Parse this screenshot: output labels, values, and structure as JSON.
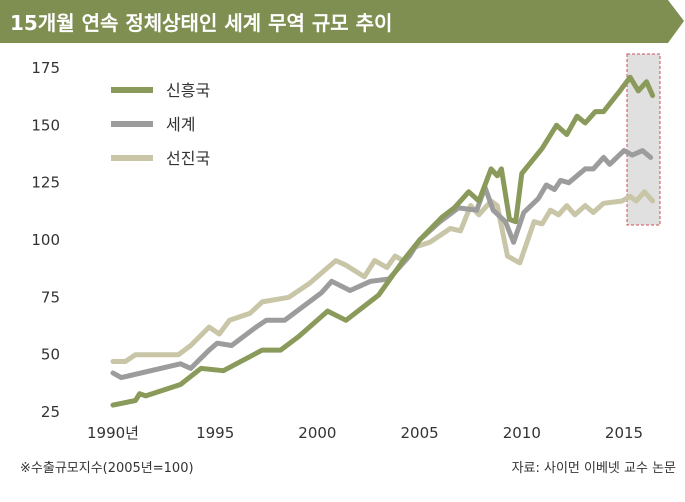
{
  "title": "15개월 연속 정체상태인 세계 무역 규모 추이",
  "footnote": "※수출규모지수(2005년=100)",
  "source": "자료: 사이먼 이베넷 교수 논문",
  "colors": {
    "title_bg": "#7f8f52",
    "emerging": "#8a9a5b",
    "world": "#9d9c9c",
    "advanced": "#c8c6a7",
    "highlight_fill": "#e0e0e0",
    "highlight_border": "#c8505a"
  },
  "chart_data": {
    "type": "line",
    "ylim": [
      25,
      180
    ],
    "xlim": [
      1989.0,
      2016.7
    ],
    "yticks": [
      25,
      50,
      75,
      100,
      125,
      150,
      175
    ],
    "xticks": [
      {
        "value": 1990,
        "label": "1990년"
      },
      {
        "value": 1995,
        "label": "1995"
      },
      {
        "value": 2000,
        "label": "2000"
      },
      {
        "value": 2005,
        "label": "2005"
      },
      {
        "value": 2010,
        "label": "2010"
      },
      {
        "value": 2015,
        "label": "2015"
      }
    ],
    "highlight": {
      "x_from": 2015.0,
      "x_to": 2016.7
    },
    "series": [
      {
        "name": "신흥국",
        "color_key": "emerging",
        "points": [
          [
            1990.0,
            28
          ],
          [
            1991.1,
            30
          ],
          [
            1991.3,
            33
          ],
          [
            1991.6,
            32
          ],
          [
            1993.3,
            37
          ],
          [
            1994.3,
            44
          ],
          [
            1995.4,
            43
          ],
          [
            1997.3,
            52
          ],
          [
            1998.2,
            52
          ],
          [
            1999.1,
            58
          ],
          [
            2000.5,
            69
          ],
          [
            2001.4,
            65
          ],
          [
            2003.0,
            76
          ],
          [
            2004.2,
            91
          ],
          [
            2005.0,
            100
          ],
          [
            2006.1,
            110
          ],
          [
            2006.7,
            114
          ],
          [
            2007.4,
            121
          ],
          [
            2007.9,
            117
          ],
          [
            2008.5,
            131
          ],
          [
            2008.8,
            128
          ],
          [
            2009.0,
            131
          ],
          [
            2009.4,
            109
          ],
          [
            2009.7,
            108
          ],
          [
            2010.0,
            129
          ],
          [
            2011.0,
            140
          ],
          [
            2011.7,
            150
          ],
          [
            2012.2,
            146
          ],
          [
            2012.7,
            154
          ],
          [
            2013.1,
            151
          ],
          [
            2013.6,
            156
          ],
          [
            2014.0,
            156
          ],
          [
            2014.8,
            165
          ],
          [
            2015.3,
            171
          ],
          [
            2015.7,
            165
          ],
          [
            2016.1,
            169
          ],
          [
            2016.4,
            163
          ]
        ]
      },
      {
        "name": "세계",
        "color_key": "world",
        "points": [
          [
            1990.0,
            42
          ],
          [
            1990.4,
            40
          ],
          [
            1993.3,
            46
          ],
          [
            1993.8,
            44
          ],
          [
            1994.7,
            52
          ],
          [
            1995.1,
            55
          ],
          [
            1995.8,
            54
          ],
          [
            1997.0,
            62
          ],
          [
            1997.5,
            65
          ],
          [
            1998.4,
            65
          ],
          [
            2000.2,
            77
          ],
          [
            2000.7,
            82
          ],
          [
            2001.6,
            78
          ],
          [
            2002.6,
            82
          ],
          [
            2003.5,
            83
          ],
          [
            2004.5,
            93
          ],
          [
            2005.0,
            100
          ],
          [
            2006.0,
            108
          ],
          [
            2006.9,
            114
          ],
          [
            2007.8,
            113
          ],
          [
            2008.2,
            123
          ],
          [
            2008.6,
            113
          ],
          [
            2009.2,
            108
          ],
          [
            2009.6,
            99
          ],
          [
            2010.1,
            112
          ],
          [
            2010.8,
            118
          ],
          [
            2011.2,
            124
          ],
          [
            2011.6,
            122
          ],
          [
            2011.9,
            126
          ],
          [
            2012.3,
            125
          ],
          [
            2013.1,
            131
          ],
          [
            2013.5,
            131
          ],
          [
            2014.0,
            136
          ],
          [
            2014.3,
            133
          ],
          [
            2015.0,
            139
          ],
          [
            2015.4,
            137
          ],
          [
            2015.9,
            139
          ],
          [
            2016.3,
            136
          ]
        ]
      },
      {
        "name": "선진국",
        "color_key": "advanced",
        "points": [
          [
            1990.0,
            47
          ],
          [
            1990.6,
            47
          ],
          [
            1991.1,
            50
          ],
          [
            1993.2,
            50
          ],
          [
            1993.8,
            54
          ],
          [
            1994.7,
            62
          ],
          [
            1995.2,
            59
          ],
          [
            1995.7,
            65
          ],
          [
            1996.7,
            68
          ],
          [
            1997.3,
            73
          ],
          [
            1998.6,
            75
          ],
          [
            1999.6,
            81
          ],
          [
            2000.9,
            91
          ],
          [
            2001.4,
            89
          ],
          [
            2002.3,
            84
          ],
          [
            2002.8,
            91
          ],
          [
            2003.4,
            88
          ],
          [
            2003.8,
            93
          ],
          [
            2004.2,
            91
          ],
          [
            2004.8,
            97
          ],
          [
            2005.5,
            99
          ],
          [
            2006.5,
            105
          ],
          [
            2007.0,
            104
          ],
          [
            2007.5,
            115
          ],
          [
            2007.9,
            111
          ],
          [
            2008.5,
            117
          ],
          [
            2008.8,
            115
          ],
          [
            2009.3,
            93
          ],
          [
            2009.9,
            90
          ],
          [
            2010.6,
            108
          ],
          [
            2011.0,
            107
          ],
          [
            2011.4,
            113
          ],
          [
            2011.8,
            111
          ],
          [
            2012.2,
            115
          ],
          [
            2012.6,
            111
          ],
          [
            2013.1,
            115
          ],
          [
            2013.5,
            112
          ],
          [
            2014.0,
            116
          ],
          [
            2014.9,
            117
          ],
          [
            2015.3,
            119
          ],
          [
            2015.6,
            117
          ],
          [
            2016.0,
            121
          ],
          [
            2016.4,
            117
          ]
        ]
      }
    ]
  }
}
